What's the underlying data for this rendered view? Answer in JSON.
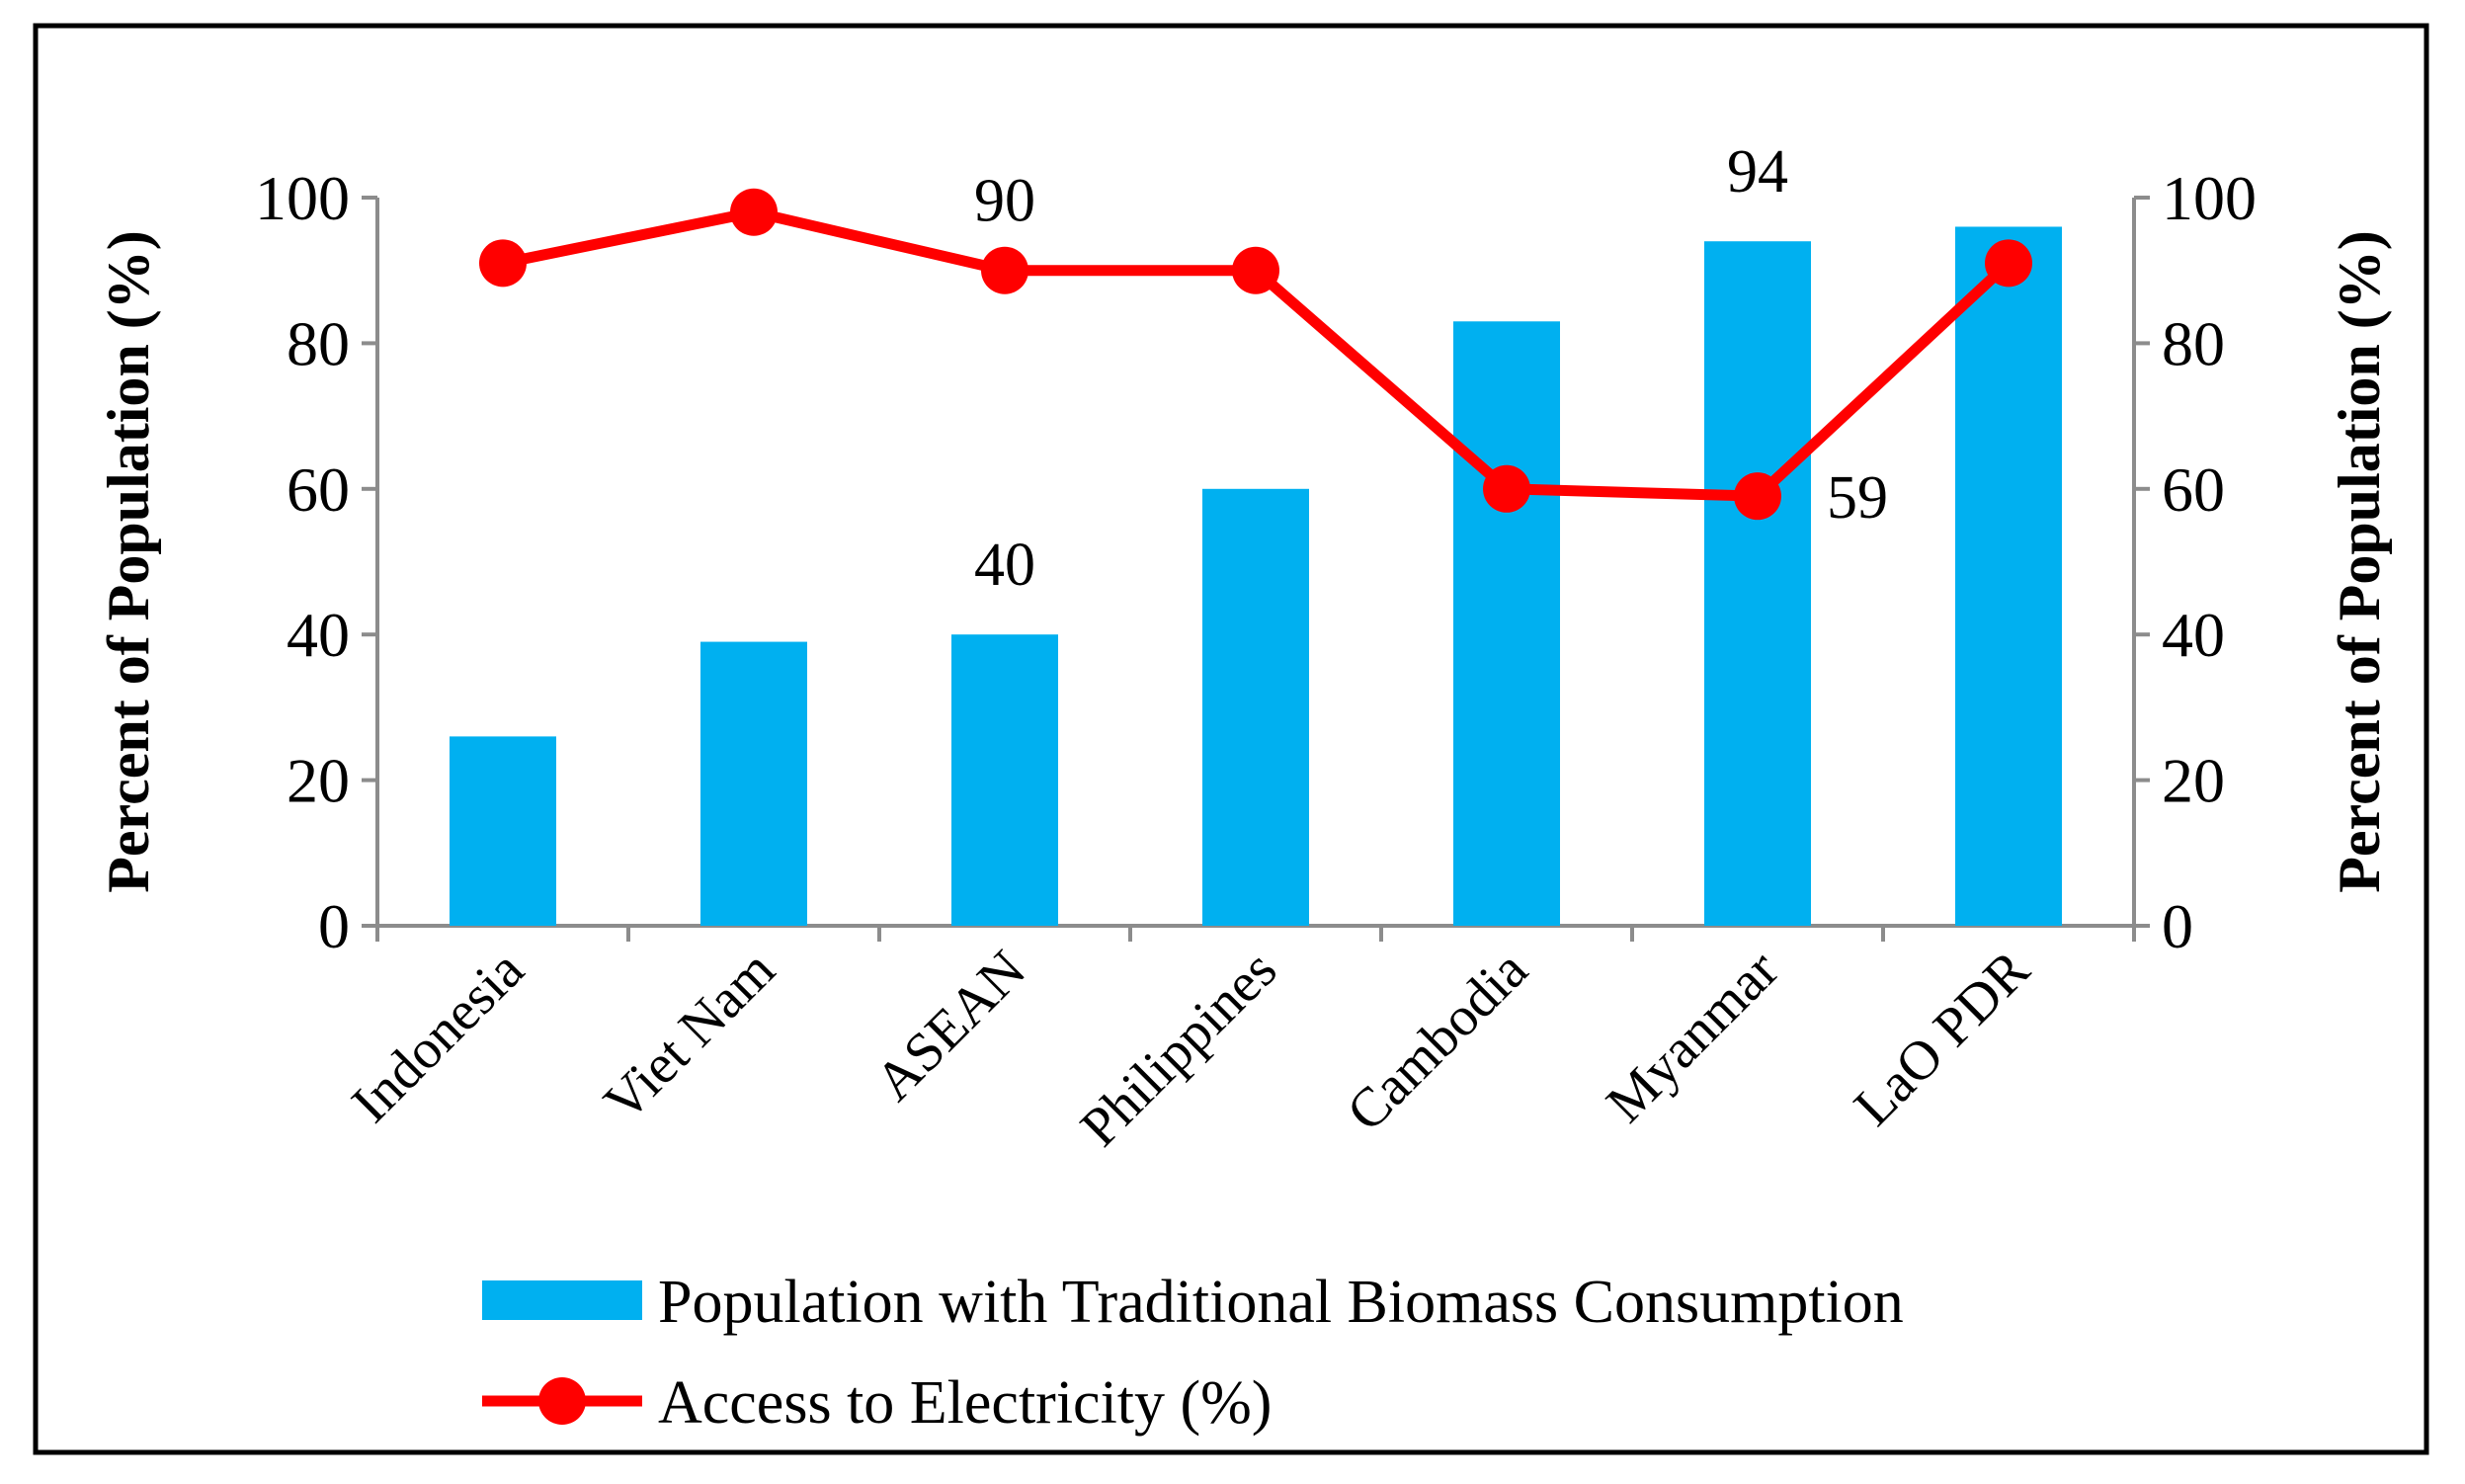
{
  "chart_data": {
    "type": "bar+line",
    "categories": [
      "Indonesia",
      "Viet Nam",
      "ASEAN",
      "Philippines",
      "Cambodia",
      "Myanmar",
      "LaO PDR"
    ],
    "series": [
      {
        "name": "Population with Traditional Biomass Consumption",
        "type": "bar",
        "axis": "left",
        "color": "#00B0F0",
        "values": [
          26,
          39,
          40,
          60,
          83,
          94,
          96
        ]
      },
      {
        "name": "Access to Electricity (%)",
        "type": "line",
        "axis": "right",
        "color": "#FF0000",
        "values": [
          91,
          98,
          90,
          90,
          60,
          59,
          91
        ]
      }
    ],
    "data_labels": [
      {
        "series": 0,
        "category": "ASEAN",
        "text": "40"
      },
      {
        "series": 0,
        "category": "Myanmar",
        "text": "94"
      },
      {
        "series": 1,
        "category": "ASEAN",
        "text": "90"
      },
      {
        "series": 1,
        "category": "Myanmar",
        "text": "59"
      }
    ],
    "ylabel_left": "Percent of Population (%)",
    "ylabel_right": "Percent of Population (%)",
    "ylim_left": [
      0,
      100
    ],
    "ylim_right": [
      0,
      100
    ],
    "yticks": [
      0,
      20,
      40,
      60,
      80,
      100
    ],
    "legend_position": "bottom",
    "grid": false
  }
}
